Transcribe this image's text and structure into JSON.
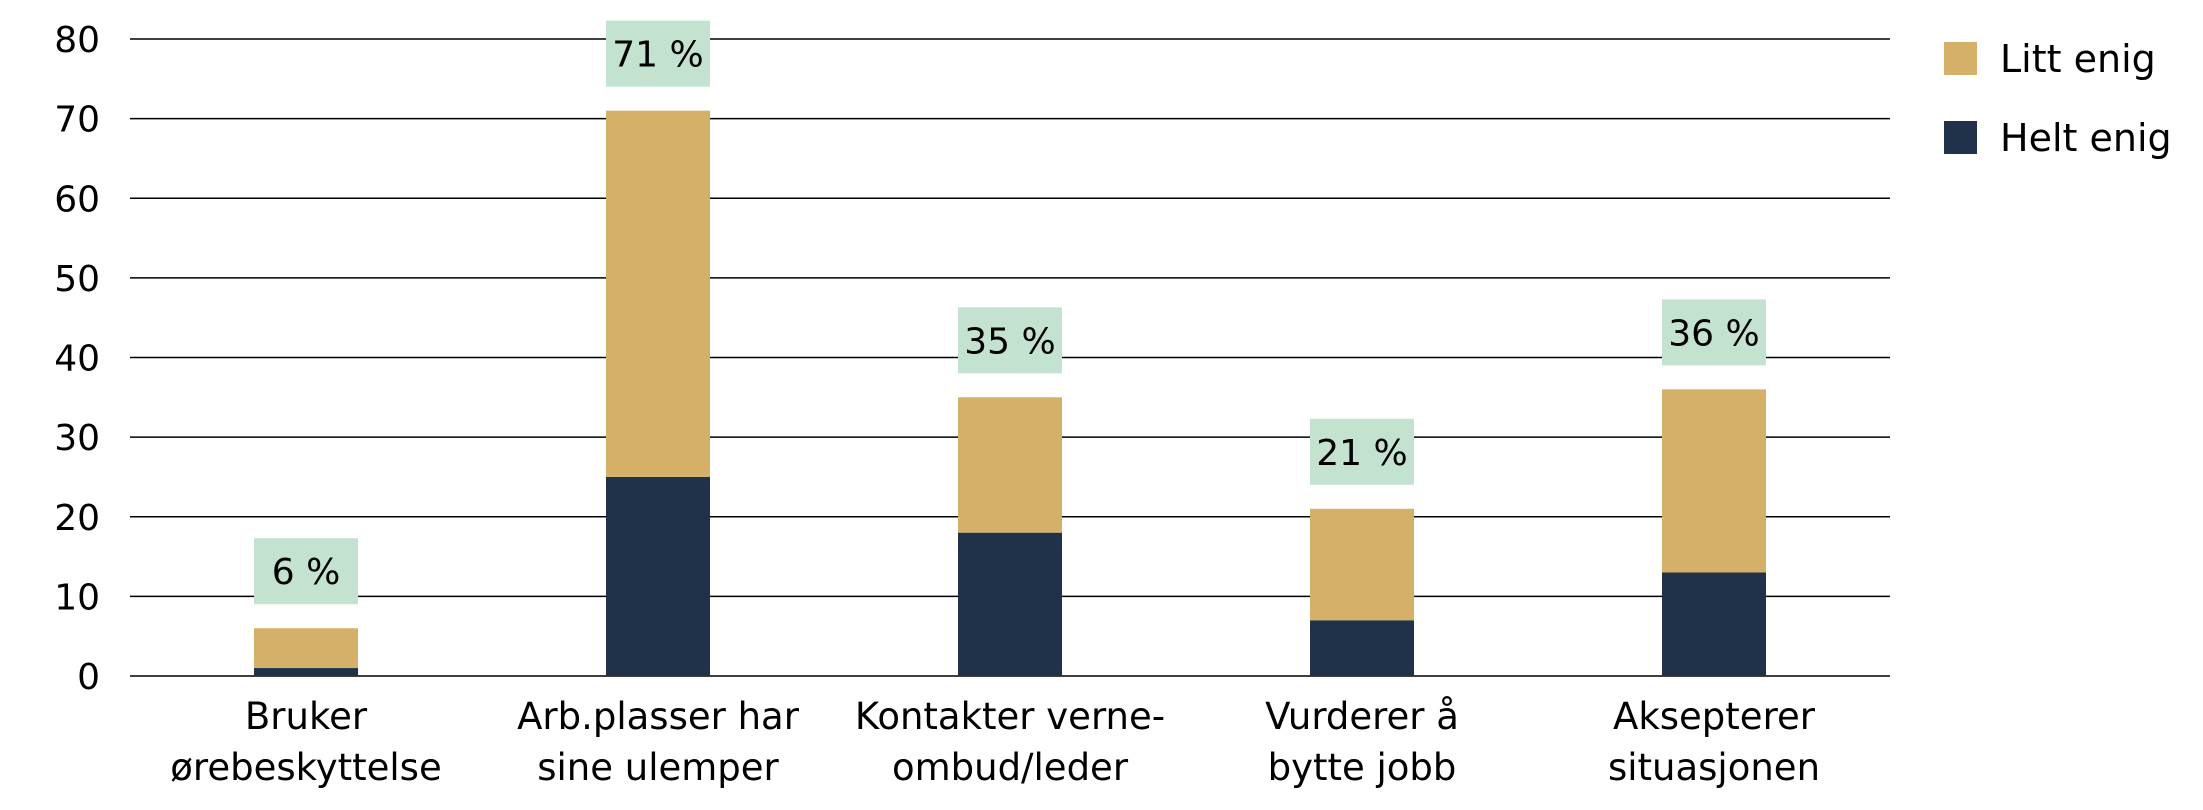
{
  "chart_data": {
    "type": "bar",
    "stacked": true,
    "categories": [
      [
        "Bruker",
        "ørebeskyttelse"
      ],
      [
        "Arb.plasser har",
        "sine ulemper"
      ],
      [
        "Kontakter verne-",
        "ombud/leder"
      ],
      [
        "Vurderer å",
        "bytte jobb"
      ],
      [
        "Aksepterer",
        "situasjonen"
      ]
    ],
    "series": [
      {
        "name": "Helt enig",
        "values": [
          1,
          25,
          18,
          7,
          13
        ]
      },
      {
        "name": "Litt enig",
        "values": [
          5,
          46,
          17,
          14,
          23
        ]
      }
    ],
    "totals": [
      6,
      71,
      35,
      21,
      36
    ],
    "total_labels": [
      "6 %",
      "71 %",
      "35 %",
      "21 %",
      "36 %"
    ],
    "ylim": [
      0,
      80
    ],
    "yticks": [
      0,
      10,
      20,
      30,
      40,
      50,
      60,
      70,
      80
    ],
    "grid": true,
    "legend_position": "top-right",
    "legend_order": [
      "Litt enig",
      "Helt enig"
    ],
    "colors": {
      "Helt enig": "#1f324a",
      "Litt enig": "#d4b068",
      "label_box": "#c3e2d0",
      "grid": "#000000"
    }
  }
}
